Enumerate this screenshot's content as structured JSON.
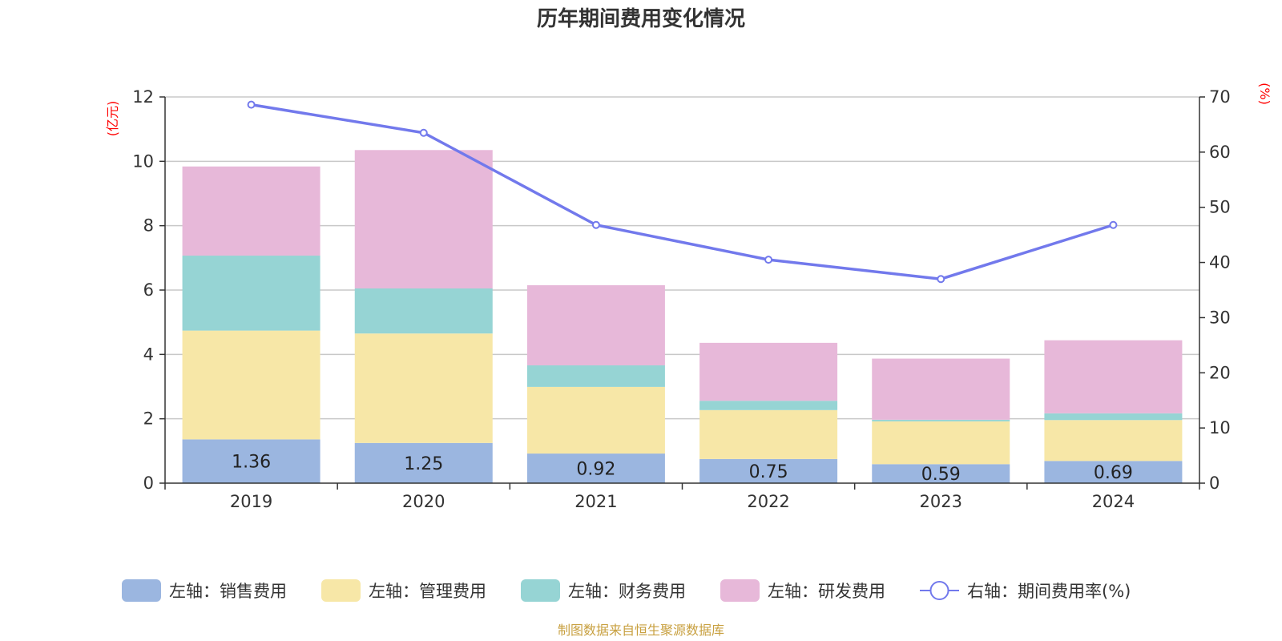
{
  "chart_data": {
    "type": "bar",
    "title": "历年期间费用变化情况",
    "categories": [
      "2019",
      "2020",
      "2021",
      "2022",
      "2023",
      "2024"
    ],
    "stacked": true,
    "series": [
      {
        "name": "销售费用",
        "legend_label": "左轴：销售费用",
        "axis": "left",
        "color": "#9bb6e0",
        "values": [
          1.36,
          1.25,
          0.92,
          0.75,
          0.59,
          0.69
        ],
        "show_labels": true
      },
      {
        "name": "管理费用",
        "legend_label": "左轴：管理费用",
        "axis": "left",
        "color": "#f7e7a7",
        "values": [
          3.38,
          3.4,
          2.07,
          1.52,
          1.33,
          1.27
        ],
        "show_labels": false
      },
      {
        "name": "财务费用",
        "legend_label": "左轴：财务费用",
        "axis": "left",
        "color": "#96d4d4",
        "values": [
          2.33,
          1.4,
          0.67,
          0.29,
          0.05,
          0.21
        ],
        "show_labels": false
      },
      {
        "name": "研发费用",
        "legend_label": "左轴：研发费用",
        "axis": "left",
        "color": "#e7b8d9",
        "values": [
          2.77,
          4.3,
          2.49,
          1.8,
          1.9,
          2.27
        ],
        "show_labels": false
      }
    ],
    "line_series": {
      "name": "期间费用率(%)",
      "legend_label": "右轴：期间费用率(%)",
      "axis": "right",
      "color": "#7279ec",
      "values": [
        68.6,
        63.5,
        46.8,
        40.5,
        37.0,
        46.8
      ]
    },
    "left_axis": {
      "unit": "(亿元)",
      "min": 0,
      "max": 12,
      "ticks": [
        0,
        2,
        4,
        6,
        8,
        10,
        12
      ],
      "unit_color": "#ff0000"
    },
    "right_axis": {
      "unit": "(%)",
      "min": 0,
      "max": 70,
      "ticks": [
        0,
        10,
        20,
        30,
        40,
        50,
        60,
        70
      ],
      "unit_color": "#ff0000"
    },
    "grid": true,
    "legend_position": "bottom"
  },
  "source": {
    "text": "制图数据来自恒生聚源数据库",
    "color": "#c8a040"
  }
}
